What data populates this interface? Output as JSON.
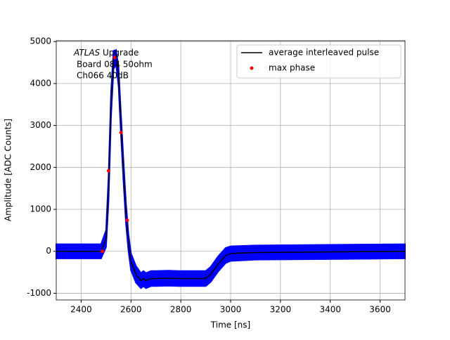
{
  "chart_data": {
    "type": "line",
    "xlabel": "Time [ns]",
    "ylabel": "Amplitude [ADC Counts]",
    "annotation": [
      "ATLAS",
      "Upgrade",
      "Board 084 50ohm",
      "Ch066 40dB"
    ],
    "x": [
      2300,
      2480,
      2500,
      2510,
      2520,
      2530,
      2540,
      2550,
      2560,
      2570,
      2580,
      2590,
      2600,
      2620,
      2640,
      2650,
      2660,
      2680,
      2700,
      2750,
      2800,
      2900,
      2920,
      2950,
      2980,
      3000,
      3100,
      3700
    ],
    "band": {
      "color": "#0000ff",
      "lower": [
        -170,
        -170,
        100,
        1200,
        3200,
        4350,
        4450,
        3950,
        2750,
        1650,
        650,
        0,
        -450,
        -750,
        -880,
        -830,
        -880,
        -830,
        -830,
        -820,
        -830,
        -830,
        -730,
        -480,
        -280,
        -230,
        -200,
        -170
      ],
      "upper": [
        170,
        170,
        500,
        1800,
        3800,
        4780,
        4800,
        4400,
        3250,
        2150,
        1150,
        400,
        -50,
        -350,
        -520,
        -470,
        -520,
        -470,
        -470,
        -460,
        -470,
        -470,
        -370,
        -120,
        80,
        120,
        140,
        170
      ]
    },
    "series": [
      {
        "name": "average interleaved pulse",
        "color": "#000000",
        "values": [
          0,
          0,
          300,
          1500,
          3500,
          4600,
          4650,
          4200,
          3000,
          1900,
          900,
          200,
          -250,
          -550,
          -700,
          -650,
          -700,
          -650,
          -650,
          -640,
          -650,
          -650,
          -550,
          -300,
          -100,
          -50,
          -30,
          0
        ]
      },
      {
        "name": "max phase",
        "color": "#ff0000",
        "x": [
          2485,
          2510,
          2535,
          2560,
          2585
        ],
        "values": [
          0,
          1920,
          4620,
          2830,
          740
        ]
      }
    ],
    "xlim": [
      2300,
      3700
    ],
    "ylim": [
      -1160,
      5020
    ],
    "xticks": [
      2400,
      2600,
      2800,
      3000,
      3200,
      3400,
      3600
    ],
    "yticks": [
      -1000,
      0,
      1000,
      2000,
      3000,
      4000,
      5000
    ],
    "grid": true,
    "legend": "upper right"
  }
}
